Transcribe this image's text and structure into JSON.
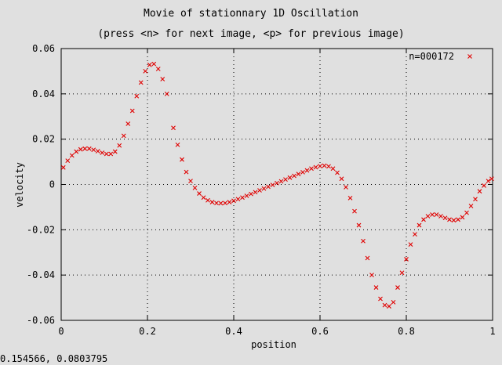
{
  "window": {
    "status_readout": "0.154566,  0.0803795"
  },
  "chart_data": {
    "type": "scatter",
    "title": "Movie of stationnary 1D Oscillation",
    "subtitle": "(press <n> for next image, <p> for previous image)",
    "xlabel": "position",
    "ylabel": "velocity",
    "xlim": [
      0,
      1
    ],
    "ylim": [
      -0.06,
      0.06
    ],
    "xticks": [
      0,
      0.2,
      0.4,
      0.6,
      0.8,
      1
    ],
    "xtick_labels": [
      "0",
      "0.2",
      "0.4",
      "0.6",
      "0.8",
      "1"
    ],
    "yticks": [
      -0.06,
      -0.04,
      -0.02,
      0,
      0.02,
      0.04,
      0.06
    ],
    "ytick_labels": [
      "-0.06",
      "-0.04",
      "-0.02",
      "0",
      "0.02",
      "0.04",
      "0.06"
    ],
    "grid": true,
    "legend_position": "top-right",
    "marker": "x",
    "color": "#e00000",
    "series": [
      {
        "name": "n=000172",
        "points": [
          [
            0.005,
            0.0075
          ],
          [
            0.015,
            0.0105
          ],
          [
            0.025,
            0.0128
          ],
          [
            0.035,
            0.0145
          ],
          [
            0.045,
            0.0155
          ],
          [
            0.055,
            0.0158
          ],
          [
            0.065,
            0.0158
          ],
          [
            0.075,
            0.0153
          ],
          [
            0.085,
            0.0147
          ],
          [
            0.095,
            0.014
          ],
          [
            0.105,
            0.0135
          ],
          [
            0.115,
            0.0135
          ],
          [
            0.125,
            0.0145
          ],
          [
            0.135,
            0.0172
          ],
          [
            0.145,
            0.0215
          ],
          [
            0.155,
            0.0268
          ],
          [
            0.165,
            0.0325
          ],
          [
            0.175,
            0.039
          ],
          [
            0.185,
            0.045
          ],
          [
            0.195,
            0.05
          ],
          [
            0.205,
            0.0528
          ],
          [
            0.215,
            0.0532
          ],
          [
            0.225,
            0.051
          ],
          [
            0.235,
            0.0465
          ],
          [
            0.245,
            0.04
          ],
          [
            0.26,
            0.025
          ],
          [
            0.27,
            0.0175
          ],
          [
            0.28,
            0.011
          ],
          [
            0.29,
            0.0055
          ],
          [
            0.3,
            0.0015
          ],
          [
            0.31,
            -0.0015
          ],
          [
            0.32,
            -0.004
          ],
          [
            0.33,
            -0.0058
          ],
          [
            0.34,
            -0.007
          ],
          [
            0.35,
            -0.0078
          ],
          [
            0.36,
            -0.0082
          ],
          [
            0.37,
            -0.0083
          ],
          [
            0.38,
            -0.0082
          ],
          [
            0.39,
            -0.0078
          ],
          [
            0.4,
            -0.0072
          ],
          [
            0.41,
            -0.0065
          ],
          [
            0.42,
            -0.0058
          ],
          [
            0.43,
            -0.005
          ],
          [
            0.44,
            -0.0042
          ],
          [
            0.45,
            -0.0034
          ],
          [
            0.46,
            -0.0026
          ],
          [
            0.47,
            -0.0018
          ],
          [
            0.48,
            -0.001
          ],
          [
            0.49,
            -0.0002
          ],
          [
            0.5,
            0.0006
          ],
          [
            0.51,
            0.0014
          ],
          [
            0.52,
            0.0022
          ],
          [
            0.53,
            0.003
          ],
          [
            0.54,
            0.0038
          ],
          [
            0.55,
            0.0046
          ],
          [
            0.56,
            0.0054
          ],
          [
            0.57,
            0.0062
          ],
          [
            0.58,
            0.007
          ],
          [
            0.59,
            0.0076
          ],
          [
            0.6,
            0.0081
          ],
          [
            0.61,
            0.0083
          ],
          [
            0.62,
            0.008
          ],
          [
            0.63,
            0.007
          ],
          [
            0.64,
            0.0052
          ],
          [
            0.65,
            0.0025
          ],
          [
            0.66,
            -0.0012
          ],
          [
            0.67,
            -0.006
          ],
          [
            0.68,
            -0.0118
          ],
          [
            0.69,
            -0.018
          ],
          [
            0.7,
            -0.025
          ],
          [
            0.71,
            -0.0325
          ],
          [
            0.72,
            -0.04
          ],
          [
            0.73,
            -0.0455
          ],
          [
            0.74,
            -0.0505
          ],
          [
            0.75,
            -0.0533
          ],
          [
            0.76,
            -0.0538
          ],
          [
            0.77,
            -0.052
          ],
          [
            0.78,
            -0.0455
          ],
          [
            0.79,
            -0.039
          ],
          [
            0.8,
            -0.033
          ],
          [
            0.81,
            -0.0265
          ],
          [
            0.82,
            -0.022
          ],
          [
            0.83,
            -0.018
          ],
          [
            0.84,
            -0.0155
          ],
          [
            0.85,
            -0.014
          ],
          [
            0.86,
            -0.0133
          ],
          [
            0.87,
            -0.0133
          ],
          [
            0.88,
            -0.014
          ],
          [
            0.89,
            -0.0148
          ],
          [
            0.9,
            -0.0155
          ],
          [
            0.91,
            -0.0158
          ],
          [
            0.92,
            -0.0155
          ],
          [
            0.93,
            -0.0145
          ],
          [
            0.94,
            -0.0125
          ],
          [
            0.95,
            -0.0095
          ],
          [
            0.96,
            -0.0065
          ],
          [
            0.97,
            -0.003
          ],
          [
            0.98,
            -0.0005
          ],
          [
            0.99,
            0.0015
          ],
          [
            0.998,
            0.0025
          ]
        ]
      }
    ]
  }
}
